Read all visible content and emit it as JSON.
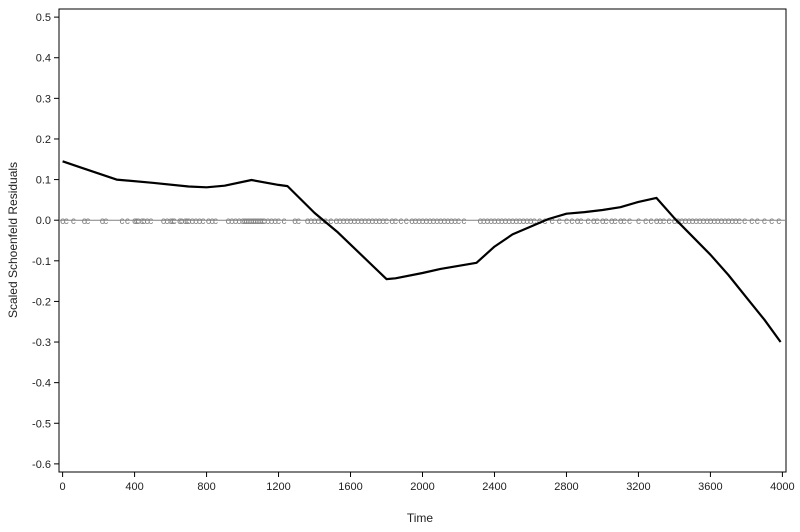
{
  "chart_data": {
    "type": "line",
    "title": "",
    "xlabel": "Time",
    "ylabel": "Scaled Schoenfeld Residuals",
    "xlim": [
      -20,
      4020
    ],
    "ylim": [
      -0.62,
      0.52
    ],
    "x_ticks": [
      0,
      400,
      800,
      1200,
      1600,
      2000,
      2400,
      2800,
      3200,
      3600,
      4000
    ],
    "y_ticks": [
      0.5,
      0.4,
      0.3,
      0.2,
      0.1,
      0.0,
      -0.1,
      -0.2,
      -0.3,
      -0.4,
      -0.5,
      -0.6
    ],
    "y_tick_labels": [
      "0.5",
      "0.4",
      "0.3",
      "0.2",
      "0.1",
      "0.0",
      "-0.1",
      "-0.2",
      "-0.3",
      "-0.4",
      "-0.5",
      "-0.6"
    ],
    "grid": false,
    "reference_line": {
      "y": 0.0
    },
    "series": [
      {
        "x": [
          0,
          100,
          300,
          500,
          700,
          800,
          900,
          1050,
          1200,
          1250,
          1400,
          1530,
          1800,
          1850,
          2000,
          2100,
          2300,
          2400,
          2500,
          2700,
          2800,
          2900,
          3000,
          3100,
          3200,
          3300,
          3400,
          3600,
          3700,
          3800,
          3900,
          3990
        ],
        "y": [
          0.145,
          0.13,
          0.1,
          0.092,
          0.083,
          0.081,
          0.085,
          0.099,
          0.087,
          0.084,
          0.018,
          -0.03,
          -0.145,
          -0.143,
          -0.13,
          -0.12,
          -0.105,
          -0.065,
          -0.035,
          0.003,
          0.016,
          0.02,
          0.025,
          0.032,
          0.045,
          0.055,
          0.005,
          -0.085,
          -0.135,
          -0.19,
          -0.245,
          -0.3
        ]
      }
    ],
    "event_marks": {
      "symbol": "c",
      "y": 0.0,
      "x": [
        0,
        20,
        60,
        120,
        140,
        220,
        240,
        330,
        360,
        400,
        410,
        420,
        440,
        450,
        470,
        490,
        560,
        580,
        600,
        610,
        620,
        650,
        660,
        680,
        690,
        700,
        720,
        740,
        760,
        780,
        810,
        830,
        850,
        920,
        940,
        960,
        980,
        1000,
        1010,
        1020,
        1030,
        1040,
        1050,
        1060,
        1070,
        1080,
        1090,
        1100,
        1110,
        1120,
        1140,
        1160,
        1180,
        1200,
        1230,
        1290,
        1310,
        1360,
        1380,
        1400,
        1420,
        1440,
        1460,
        1490,
        1520,
        1540,
        1560,
        1580,
        1600,
        1620,
        1640,
        1660,
        1680,
        1700,
        1720,
        1740,
        1760,
        1780,
        1800,
        1830,
        1850,
        1880,
        1910,
        1940,
        1960,
        1980,
        2000,
        2020,
        2040,
        2060,
        2080,
        2100,
        2120,
        2140,
        2160,
        2180,
        2200,
        2230,
        2320,
        2340,
        2360,
        2380,
        2400,
        2420,
        2440,
        2460,
        2480,
        2500,
        2520,
        2540,
        2560,
        2580,
        2600,
        2620,
        2650,
        2680,
        2720,
        2760,
        2800,
        2830,
        2860,
        2880,
        2920,
        2950,
        2970,
        3000,
        3020,
        3050,
        3070,
        3100,
        3120,
        3150,
        3200,
        3240,
        3270,
        3300,
        3320,
        3340,
        3370,
        3400,
        3420,
        3440,
        3460,
        3480,
        3500,
        3520,
        3540,
        3560,
        3580,
        3600,
        3620,
        3640,
        3660,
        3680,
        3700,
        3720,
        3740,
        3760,
        3790,
        3830,
        3860,
        3900,
        3940,
        3980
      ]
    },
    "colors": {
      "line": "#000000",
      "reference": "#808080",
      "marks": "#808080",
      "axis": "#000000",
      "text": "#222222",
      "background": "#ffffff"
    }
  }
}
